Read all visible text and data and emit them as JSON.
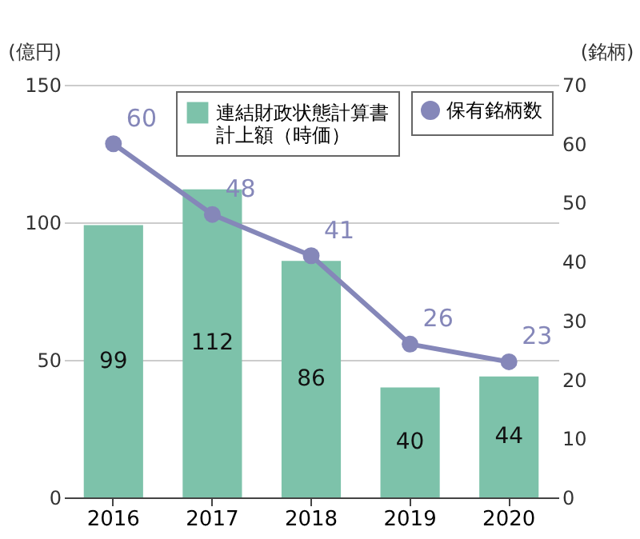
{
  "chart_data": {
    "type": "bar",
    "categories": [
      "2016",
      "2017",
      "2018",
      "2019",
      "2020"
    ],
    "ylabel": "(億円)",
    "y2label": "(銘柄)",
    "ylim": [
      0,
      150
    ],
    "yticks": [
      0,
      50,
      100,
      150
    ],
    "y2lim": [
      0,
      70
    ],
    "y2ticks": [
      0,
      10,
      20,
      30,
      40,
      50,
      60,
      70
    ],
    "grid": "y",
    "legend": "top right",
    "data_labels": true,
    "marker": "circle",
    "line_style": "solid",
    "series": [
      {
        "name": "連結財政状態計算書計上額（時価）",
        "color": "#7dc2aa",
        "values": [
          99,
          112,
          86,
          40,
          44
        ]
      },
      {
        "name": "保有銘柄数",
        "type": "line",
        "axis": "y2",
        "color": "#8587b9",
        "values": [
          60,
          48,
          41,
          26,
          23
        ]
      }
    ]
  }
}
